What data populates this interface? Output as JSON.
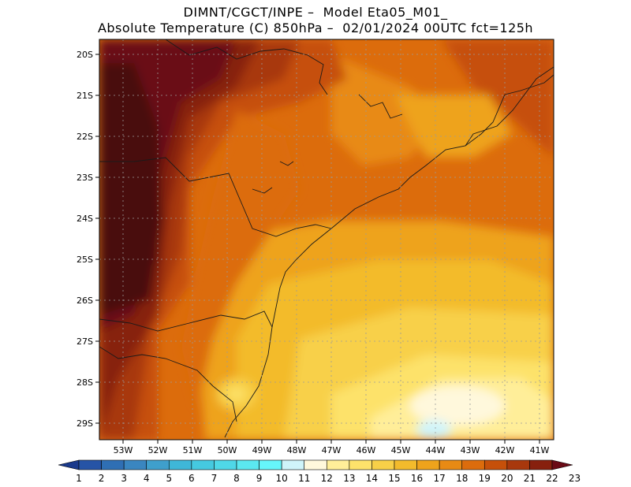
{
  "header": {
    "title_line1": "DIMNT/CGCT/INPE –  Model Eta05_M01_",
    "title_line2": "Absolute Temperature (C) 850hPa –  02/01/2024 00UTC fct=125h"
  },
  "axes": {
    "lat_labels": [
      "20S",
      "21S",
      "22S",
      "23S",
      "24S",
      "25S",
      "26S",
      "27S",
      "28S",
      "29S"
    ],
    "lon_labels": [
      "53W",
      "52W",
      "51W",
      "50W",
      "49W",
      "48W",
      "47W",
      "46W",
      "45W",
      "44W",
      "43W",
      "42W",
      "41W"
    ]
  },
  "colorbar": {
    "labels": [
      "1",
      "2",
      "3",
      "4",
      "5",
      "6",
      "7",
      "8",
      "9",
      "10",
      "11",
      "12",
      "13",
      "14",
      "15",
      "16",
      "17",
      "18",
      "19",
      "20",
      "21",
      "22",
      "23"
    ],
    "colors": [
      "#1a3a8c",
      "#2654a6",
      "#2f6fb4",
      "#3a86c0",
      "#3f9fcc",
      "#3fb7d8",
      "#45c9e0",
      "#4fd8e8",
      "#5be8f0",
      "#66f6fa",
      "#cff4fa",
      "#fff8dc",
      "#ffee99",
      "#fde26b",
      "#f8d048",
      "#f3bb2c",
      "#eea31c",
      "#e88a14",
      "#dc6c0c",
      "#c6500a",
      "#a8380c",
      "#87200e",
      "#6a0a16"
    ]
  }
}
